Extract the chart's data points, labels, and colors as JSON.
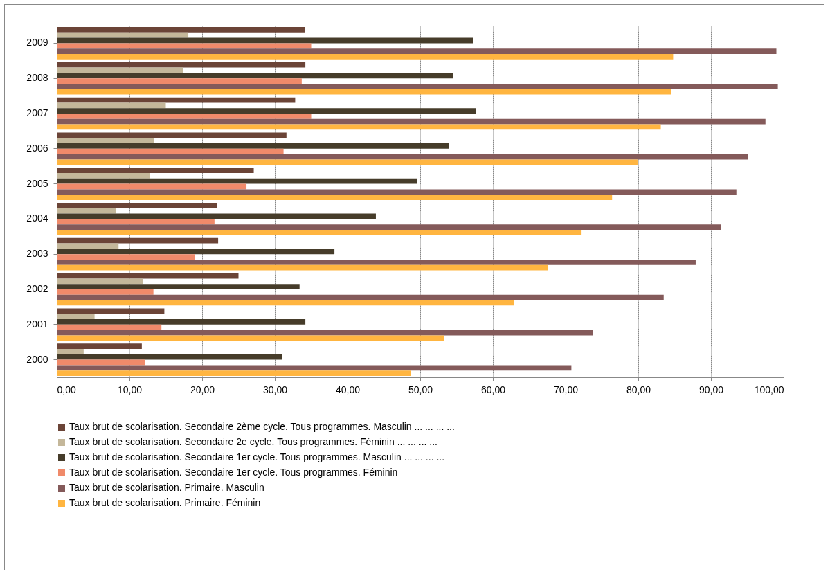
{
  "chart_data": {
    "type": "bar",
    "orientation": "horizontal",
    "categories": [
      "2009",
      "2008",
      "2007",
      "2006",
      "2005",
      "2004",
      "2003",
      "2002",
      "2001",
      "2000"
    ],
    "series": [
      {
        "name": "Taux brut de scolarisation.  Secondaire 2ème cycle. Tous programmes.  Masculin ... ... ... ...",
        "color": "#6b4437",
        "values": [
          34.1,
          34.2,
          32.8,
          31.6,
          27.1,
          22.0,
          22.2,
          25.0,
          14.8,
          11.7
        ]
      },
      {
        "name": "Taux brut de scolarisation.  Secondaire 2e cycle. Tous programmes. Féminin ... ... ... ...",
        "color": "#c4b79a",
        "values": [
          18.1,
          17.4,
          15.0,
          13.4,
          12.8,
          8.1,
          8.5,
          11.9,
          5.2,
          3.7
        ]
      },
      {
        "name": "Taux brut de scolarisation.  Secondaire 1er cycle. Tous programmes.  Masculin ... ... ... ...",
        "color": "#463c2a",
        "values": [
          57.3,
          54.5,
          57.7,
          54.0,
          49.6,
          43.9,
          38.2,
          33.4,
          34.2,
          31.0
        ]
      },
      {
        "name": "Taux brut de scolarisation.  Secondaire 1er cycle. Tous programmes.  Féminin",
        "color": "#f08a6a",
        "values": [
          35.0,
          33.7,
          35.0,
          31.2,
          26.1,
          21.7,
          19.0,
          13.3,
          14.4,
          12.1
        ]
      },
      {
        "name": "Taux brut de scolarisation.   Primaire.  Masculin",
        "color": "#845a5a",
        "values": [
          99.0,
          99.2,
          97.5,
          95.1,
          93.5,
          91.4,
          87.9,
          83.5,
          73.8,
          70.8
        ]
      },
      {
        "name": "Taux brut de scolarisation.   Primaire.  Féminin",
        "color": "#ffb540",
        "values": [
          84.8,
          84.5,
          83.1,
          79.9,
          76.4,
          72.2,
          67.6,
          62.9,
          53.3,
          48.7
        ]
      }
    ],
    "xlim": [
      0,
      100
    ],
    "xticks": [
      {
        "value": 0,
        "label": "0,00"
      },
      {
        "value": 10,
        "label": "10,00"
      },
      {
        "value": 20,
        "label": "20,00"
      },
      {
        "value": 30,
        "label": "30,00"
      },
      {
        "value": 40,
        "label": "40,00"
      },
      {
        "value": 50,
        "label": "50,00"
      },
      {
        "value": 60,
        "label": "60,00"
      },
      {
        "value": 70,
        "label": "70,00"
      },
      {
        "value": 80,
        "label": "80,00"
      },
      {
        "value": 90,
        "label": "90,00"
      },
      {
        "value": 100,
        "label": "100,00"
      }
    ],
    "grid": "x",
    "legend": "bottom"
  }
}
